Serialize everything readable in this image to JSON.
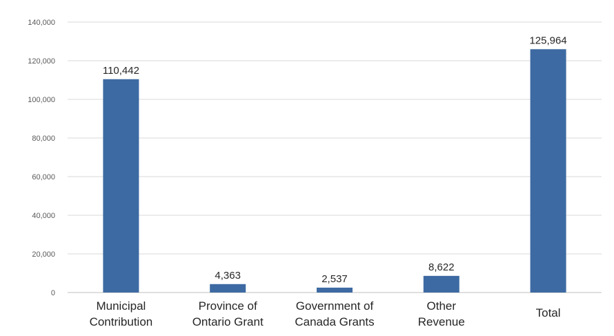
{
  "chart_data": {
    "type": "bar",
    "categories": [
      [
        "Municipal",
        "Contribution"
      ],
      [
        "Province of",
        "Ontario Grant"
      ],
      [
        "Government of",
        "Canada Grants"
      ],
      [
        "Other",
        "Revenue"
      ],
      [
        "Total"
      ]
    ],
    "values": [
      110442,
      4363,
      2537,
      8622,
      125964
    ],
    "value_labels": [
      "110,442",
      "4,363",
      "2,537",
      "8,622",
      "125,964"
    ],
    "ylim": [
      0,
      140000
    ],
    "yticks": [
      0,
      20000,
      40000,
      60000,
      80000,
      100000,
      120000,
      140000
    ],
    "ytick_labels": [
      "0",
      "20,000",
      "40,000",
      "60,000",
      "80,000",
      "100,000",
      "120,000",
      "140,000"
    ],
    "grid": true,
    "bar_color": "#3d6aa2"
  }
}
